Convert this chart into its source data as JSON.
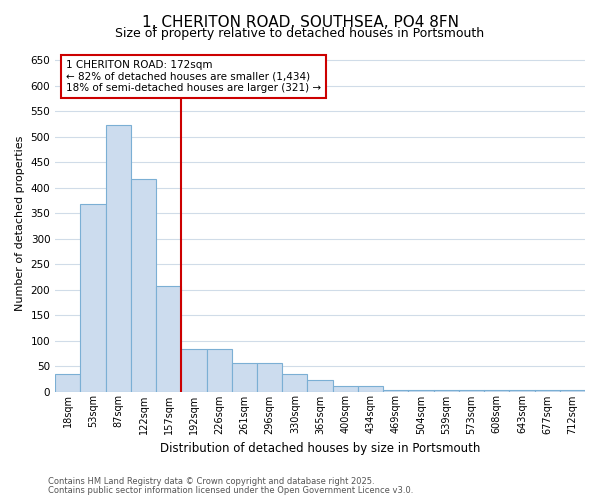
{
  "title_line1": "1, CHERITON ROAD, SOUTHSEA, PO4 8FN",
  "title_line2": "Size of property relative to detached houses in Portsmouth",
  "xlabel": "Distribution of detached houses by size in Portsmouth",
  "ylabel": "Number of detached properties",
  "bar_labels": [
    "18sqm",
    "53sqm",
    "87sqm",
    "122sqm",
    "157sqm",
    "192sqm",
    "226sqm",
    "261sqm",
    "296sqm",
    "330sqm",
    "365sqm",
    "400sqm",
    "434sqm",
    "469sqm",
    "504sqm",
    "539sqm",
    "573sqm",
    "608sqm",
    "643sqm",
    "677sqm",
    "712sqm"
  ],
  "bar_values": [
    35,
    368,
    522,
    417,
    207,
    83,
    83,
    56,
    56,
    35,
    22,
    10,
    10,
    2,
    2,
    2,
    2,
    2,
    2,
    2,
    2
  ],
  "bar_color": "#ccdcee",
  "bar_edge_color": "#7bafd4",
  "red_line_color": "#cc0000",
  "annotation_text": "1 CHERITON ROAD: 172sqm\n← 82% of detached houses are smaller (1,434)\n18% of semi-detached houses are larger (321) →",
  "annotation_box_color": "#ffffff",
  "annotation_box_edge": "#cc0000",
  "ylim": [
    0,
    660
  ],
  "yticks": [
    0,
    50,
    100,
    150,
    200,
    250,
    300,
    350,
    400,
    450,
    500,
    550,
    600,
    650
  ],
  "footer_line1": "Contains HM Land Registry data © Crown copyright and database right 2025.",
  "footer_line2": "Contains public sector information licensed under the Open Government Licence v3.0.",
  "bg_color": "#ffffff",
  "grid_color": "#d0dce8",
  "title_fontsize": 11,
  "subtitle_fontsize": 9,
  "ylabel_fontsize": 8,
  "xlabel_fontsize": 8.5,
  "tick_fontsize": 7,
  "footer_fontsize": 6,
  "annot_fontsize": 7.5
}
